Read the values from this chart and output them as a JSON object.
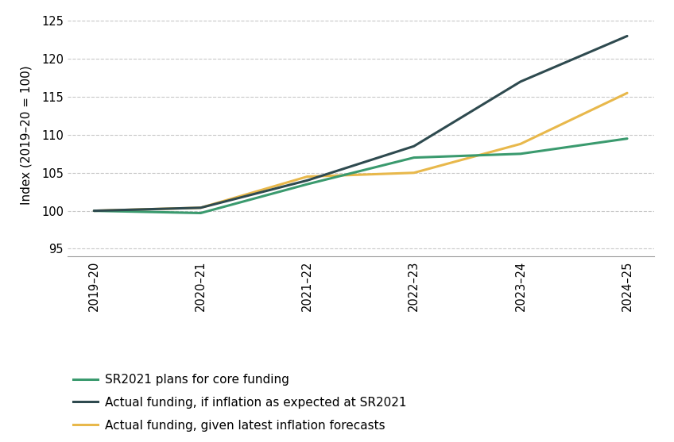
{
  "x_labels": [
    "2019–20",
    "2020–21",
    "2021–22",
    "2022–23",
    "2023–24",
    "2024–25"
  ],
  "x_positions": [
    0,
    1,
    2,
    3,
    4,
    5
  ],
  "series": [
    {
      "label": "SR2021 plans for core funding",
      "values": [
        100.0,
        99.7,
        103.5,
        107.0,
        107.5,
        109.5
      ],
      "color": "#3a9a6e",
      "linewidth": 2.2,
      "zorder": 3
    },
    {
      "label": "Actual funding, if inflation as expected at SR2021",
      "values": [
        100.0,
        100.4,
        104.0,
        108.5,
        117.0,
        123.0
      ],
      "color": "#2e4a4f",
      "linewidth": 2.2,
      "zorder": 4
    },
    {
      "label": "Actual funding, given latest inflation forecasts",
      "values": [
        100.0,
        100.4,
        104.5,
        105.0,
        108.8,
        115.5
      ],
      "color": "#e8b84b",
      "linewidth": 2.2,
      "zorder": 2
    }
  ],
  "ylabel": "Index (2019–20 = 100)",
  "ylim": [
    94,
    126
  ],
  "yticks": [
    95,
    100,
    105,
    110,
    115,
    120,
    125
  ],
  "grid_color": "#c8c8c8",
  "grid_style": "--",
  "grid_alpha": 1.0,
  "background_color": "#ffffff",
  "legend_fontsize": 11,
  "ylabel_fontsize": 11,
  "tick_fontsize": 10.5,
  "bottom_spine_color": "#999999"
}
